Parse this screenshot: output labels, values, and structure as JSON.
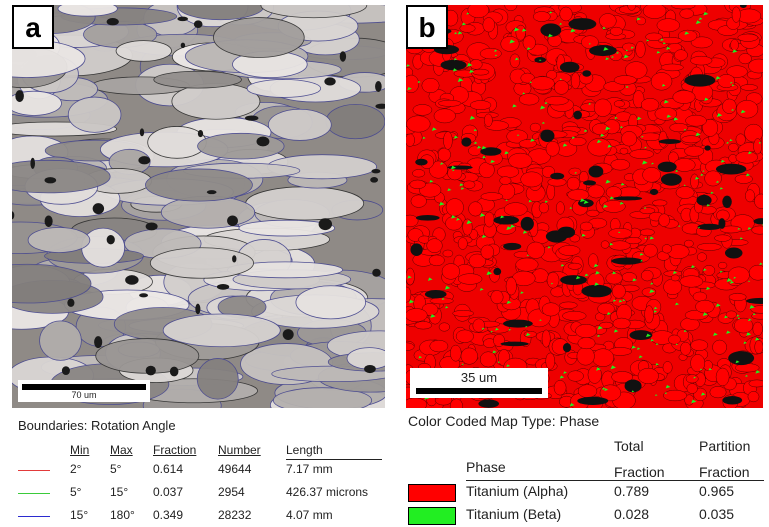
{
  "panels": [
    {
      "label": "a",
      "scale_bar": "70 um",
      "legend": {
        "title": "Boundaries: Rotation Angle",
        "columns": [
          "Min",
          "Max",
          "Fraction",
          "Number",
          "Length"
        ],
        "rows": [
          [
            "2°",
            "5°",
            "0.614",
            "49644",
            "7.17 mm"
          ],
          [
            "5°",
            "15°",
            "0.037",
            "2954",
            "426.37 microns"
          ],
          [
            "15°",
            "180°",
            "0.349",
            "28232",
            "4.07 mm"
          ]
        ]
      }
    },
    {
      "label": "b",
      "scale_bar": "35 um",
      "legend": {
        "title": "Color Coded Map Type: Phase",
        "columns": [
          "Phase",
          "Total Fraction",
          "Partition Fraction"
        ],
        "rows": [
          [
            "Titanium (Alpha)",
            "0.789",
            "0.965"
          ],
          [
            "Titanium (Beta)",
            "0.028",
            "0.035"
          ]
        ]
      }
    }
  ]
}
